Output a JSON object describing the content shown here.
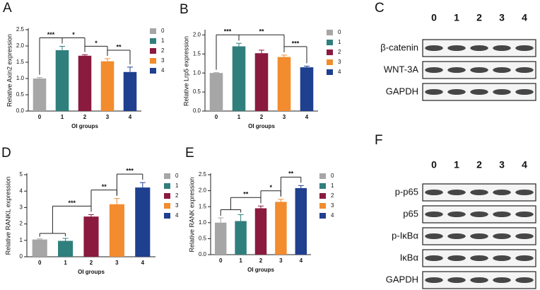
{
  "chart_data": [
    {
      "panel": "A",
      "type": "bar",
      "ylabel": "Relative Axin2 expression",
      "xlabel": "OI groups",
      "categories": [
        "0",
        "1",
        "2",
        "3",
        "4"
      ],
      "values": [
        1.0,
        1.87,
        1.7,
        1.53,
        1.2
      ],
      "errors": [
        0.03,
        0.12,
        0.03,
        0.08,
        0.15
      ],
      "colors": [
        "#a6a6a6",
        "#2f7f7d",
        "#8b1a3f",
        "#f28c2e",
        "#1f3f8f"
      ],
      "ylim": [
        0,
        2.5
      ],
      "yticks": [
        {
          "value": 0,
          "label": "0.0"
        },
        0.5,
        {
          "value": 1,
          "label": "1.0"
        },
        1.5,
        {
          "value": 2,
          "label": "2.0"
        },
        2.5
      ],
      "comparisons": [
        {
          "a": [
            "0"
          ],
          "b": [
            "1"
          ],
          "label": "***"
        },
        {
          "a": [
            "1"
          ],
          "b": [
            "2"
          ],
          "label": "*"
        },
        {
          "a": [
            "2"
          ],
          "b": [
            "3"
          ],
          "label": "*"
        },
        {
          "a": [
            "3"
          ],
          "b": [
            "4"
          ],
          "label": "**"
        }
      ]
    },
    {
      "panel": "B",
      "type": "bar",
      "ylabel": "Relative Lrp5 expression",
      "xlabel": "OI groups",
      "categories": [
        "0",
        "1",
        "2",
        "3",
        "4"
      ],
      "values": [
        1.0,
        1.7,
        1.52,
        1.42,
        1.15
      ],
      "errors": [
        0.01,
        0.08,
        0.08,
        0.05,
        0.03
      ],
      "colors": [
        "#a6a6a6",
        "#2f7f7d",
        "#8b1a3f",
        "#f28c2e",
        "#1f3f8f"
      ],
      "ylim": [
        0,
        2.1
      ],
      "yticks": [
        {
          "value": 0,
          "label": "0.0"
        },
        0.5,
        {
          "value": 1,
          "label": "1.0"
        },
        1.5,
        {
          "value": 2,
          "label": "2.0"
        }
      ],
      "comparisons": [
        {
          "a": [
            "0"
          ],
          "b": [
            "1"
          ],
          "label": "***"
        },
        {
          "a": [
            "1"
          ],
          "b": [
            "3"
          ],
          "label": "**"
        },
        {
          "a": [
            "3"
          ],
          "b": [
            "4"
          ],
          "label": "***"
        }
      ]
    },
    {
      "panel": "D",
      "type": "bar",
      "ylabel": "Relative RANKL expression",
      "xlabel": "OI groups",
      "categories": [
        "0",
        "1",
        "2",
        "3",
        "4"
      ],
      "values": [
        1.05,
        0.97,
        2.45,
        3.2,
        4.22
      ],
      "errors": [
        0.04,
        0.15,
        0.12,
        0.35,
        0.3
      ],
      "colors": [
        "#a6a6a6",
        "#2f7f7d",
        "#8b1a3f",
        "#f28c2e",
        "#1f3f8f"
      ],
      "ylim": [
        0,
        5
      ],
      "yticks": [
        0,
        1,
        2,
        3,
        4,
        5
      ],
      "comparisons": [
        {
          "a": [
            "0",
            "1"
          ],
          "b": [
            "2"
          ],
          "label": "***"
        },
        {
          "a": [
            "2"
          ],
          "b": [
            "3"
          ],
          "label": "**"
        },
        {
          "a": [
            "3"
          ],
          "b": [
            "4"
          ],
          "label": "***"
        }
      ]
    },
    {
      "panel": "E",
      "type": "bar",
      "ylabel": "Relative RANK expression",
      "xlabel": "OI groups",
      "categories": [
        "0",
        "1",
        "2",
        "3",
        "4"
      ],
      "values": [
        1.0,
        1.05,
        1.45,
        1.65,
        2.08
      ],
      "errors": [
        0.15,
        0.2,
        0.07,
        0.08,
        0.08
      ],
      "colors": [
        "#a6a6a6",
        "#2f7f7d",
        "#8b1a3f",
        "#f28c2e",
        "#1f3f8f"
      ],
      "ylim": [
        0,
        2.5
      ],
      "yticks": [
        {
          "value": 0,
          "label": "0.0"
        },
        0.5,
        {
          "value": 1,
          "label": "1.0"
        },
        1.5,
        {
          "value": 2,
          "label": "2.0"
        },
        2.5
      ],
      "comparisons": [
        {
          "a": [
            "0",
            "1"
          ],
          "b": [
            "2"
          ],
          "label": "**"
        },
        {
          "a": [
            "2"
          ],
          "b": [
            "3"
          ],
          "label": "*"
        },
        {
          "a": [
            "3"
          ],
          "b": [
            "4"
          ],
          "label": "**"
        }
      ]
    }
  ],
  "blots": [
    {
      "panel": "C",
      "lanes": [
        "0",
        "1",
        "2",
        "3",
        "4"
      ],
      "rows": [
        "β-catenin",
        "WNT-3A",
        "GAPDH"
      ]
    },
    {
      "panel": "F",
      "lanes": [
        "0",
        "1",
        "2",
        "3",
        "4"
      ],
      "rows": [
        "p-p65",
        "p65",
        "p-IκBα",
        "IκBα",
        "GAPDH"
      ]
    }
  ]
}
